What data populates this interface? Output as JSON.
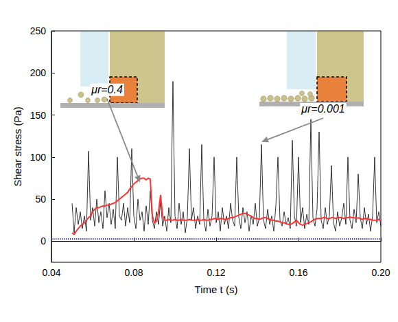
{
  "chart_data": {
    "type": "line",
    "x_label": "Time t (s)",
    "y_label": "Shear stress (Pa)",
    "xlim": [
      0.04,
      0.2
    ],
    "xticks": [
      0.04,
      0.08,
      0.12,
      0.16,
      {
        "value": 0.2,
        "label": "0.20"
      }
    ],
    "ylim": [
      -25,
      250
    ],
    "yticks": [
      0,
      50,
      100,
      150,
      200,
      250
    ],
    "grid": false,
    "x": [
      0.05,
      0.051,
      0.052,
      0.053,
      0.054,
      0.055,
      0.056,
      0.057,
      0.058,
      0.059,
      0.06,
      0.061,
      0.062,
      0.063,
      0.064,
      0.065,
      0.066,
      0.067,
      0.068,
      0.069,
      0.07,
      0.071,
      0.072,
      0.073,
      0.074,
      0.075,
      0.076,
      0.077,
      0.078,
      0.079,
      0.08,
      0.081,
      0.082,
      0.083,
      0.084,
      0.085,
      0.086,
      0.087,
      0.088,
      0.089,
      0.09,
      0.091,
      0.092,
      0.093,
      0.094,
      0.095,
      0.096,
      0.097,
      0.098,
      0.099,
      0.1,
      0.101,
      0.102,
      0.103,
      0.104,
      0.105,
      0.106,
      0.107,
      0.108,
      0.109,
      0.11,
      0.111,
      0.112,
      0.113,
      0.114,
      0.115,
      0.116,
      0.117,
      0.118,
      0.119,
      0.12,
      0.121,
      0.122,
      0.123,
      0.124,
      0.125,
      0.126,
      0.127,
      0.128,
      0.129,
      0.13,
      0.131,
      0.132,
      0.133,
      0.134,
      0.135,
      0.136,
      0.137,
      0.138,
      0.139,
      0.14,
      0.141,
      0.142,
      0.143,
      0.144,
      0.145,
      0.146,
      0.147,
      0.148,
      0.149,
      0.15,
      0.151,
      0.152,
      0.153,
      0.154,
      0.155,
      0.156,
      0.157,
      0.158,
      0.159,
      0.16,
      0.161,
      0.162,
      0.163,
      0.164,
      0.165,
      0.166,
      0.167,
      0.168,
      0.169,
      0.17,
      0.171,
      0.172,
      0.173,
      0.174,
      0.175,
      0.176,
      0.177,
      0.178,
      0.179,
      0.18,
      0.181,
      0.182,
      0.183,
      0.184,
      0.185,
      0.186,
      0.187,
      0.188,
      0.189,
      0.19,
      0.191,
      0.192,
      0.193,
      0.194,
      0.195,
      0.196,
      0.197,
      0.198,
      0.199,
      0.2
    ],
    "series": [
      {
        "color": "#000000",
        "line_style": "solid",
        "values": [
          45,
          10,
          40,
          20,
          35,
          15,
          30,
          12,
          107,
          25,
          40,
          18,
          50,
          22,
          35,
          15,
          60,
          28,
          45,
          20,
          38,
          15,
          100,
          30,
          25,
          45,
          18,
          40,
          22,
          110,
          30,
          15,
          50,
          25,
          35,
          12,
          42,
          20,
          60,
          25,
          15,
          35,
          20,
          48,
          18,
          30,
          12,
          40,
          22,
          190,
          30,
          15,
          45,
          20,
          35,
          10,
          28,
          110,
          25,
          40,
          15,
          30,
          20,
          115,
          25,
          12,
          38,
          18,
          30,
          100,
          22,
          35,
          12,
          40,
          20,
          30,
          15,
          45,
          25,
          18,
          100,
          28,
          15,
          40,
          22,
          35,
          12,
          30,
          20,
          45,
          18,
          28,
          115,
          25,
          15,
          38,
          20,
          30,
          12,
          42,
          100,
          25,
          18,
          35,
          20,
          28,
          15,
          120,
          30,
          18,
          100,
          22,
          40,
          15,
          32,
          20,
          145,
          28,
          18,
          38,
          130,
          25,
          15,
          40,
          20,
          30,
          90,
          22,
          12,
          35,
          18,
          28,
          45,
          20,
          100,
          25,
          15,
          38,
          22,
          80,
          28,
          15,
          40,
          20,
          32,
          12,
          30,
          100,
          22,
          35,
          18
        ]
      },
      {
        "color": "#ff3333",
        "line_style": "solid",
        "values": [
          10,
          8,
          12,
          15,
          18,
          20,
          22,
          25,
          28,
          30,
          35,
          38,
          40,
          40,
          41,
          42,
          42,
          43,
          43,
          44,
          45,
          46,
          48,
          50,
          52,
          54,
          56,
          58,
          62,
          65,
          68,
          70,
          72,
          74,
          75,
          75,
          73,
          75,
          74,
          30,
          22,
          24,
          35,
          55,
          30,
          25,
          25,
          26,
          25,
          25,
          26,
          25,
          25,
          26,
          25,
          25,
          25,
          26,
          25,
          25,
          25,
          26,
          25,
          25,
          26,
          25,
          25,
          26,
          26,
          27,
          27,
          26,
          27,
          27,
          26,
          26,
          27,
          28,
          28,
          29,
          30,
          31,
          32,
          33,
          33,
          32,
          31,
          30,
          28,
          27,
          27,
          26,
          27,
          28,
          28,
          27,
          26,
          25,
          25,
          24,
          24,
          23,
          22,
          22,
          21,
          20,
          20,
          21,
          23,
          25,
          22,
          20,
          19,
          20,
          21,
          22,
          23,
          25,
          26,
          27,
          27,
          27,
          28,
          28,
          27,
          27,
          28,
          28,
          27,
          28,
          28,
          28,
          27,
          28,
          28,
          29,
          28,
          28,
          27,
          28,
          27,
          26,
          27,
          27,
          26,
          26,
          25,
          25,
          25,
          26,
          25
        ]
      }
    ],
    "reference_line": {
      "y": 3,
      "color": "#0000cc",
      "line_style": "dotted"
    },
    "annotations": [
      {
        "text": "μr=0.4",
        "x": 0.067,
        "y": 180,
        "arrow_to": [
          0.083,
          70
        ]
      },
      {
        "text": "μr=0.001",
        "x": 0.172,
        "y": 157,
        "arrow_to": [
          0.142,
          118
        ]
      }
    ]
  }
}
